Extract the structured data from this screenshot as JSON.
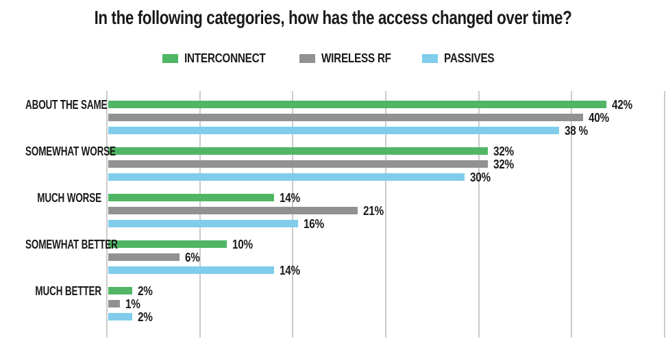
{
  "chart_data": {
    "type": "bar",
    "orientation": "horizontal",
    "title": "In the following categories, how has the access changed over time?",
    "categories": [
      "ABOUT THE SAME",
      "SOMEWHAT WORSE",
      "MUCH WORSE",
      "SOMEWHAT BETTER",
      "MUCH BETTER"
    ],
    "series": [
      {
        "name": "INTERCONNECT",
        "color": "#50b665",
        "values": [
          42,
          32,
          14,
          10,
          2
        ],
        "labels": [
          "42%",
          "32%",
          "14%",
          "10%",
          "2%"
        ]
      },
      {
        "name": "WIRELESS RF",
        "color": "#919191",
        "values": [
          40,
          32,
          21,
          6,
          1
        ],
        "labels": [
          "40%",
          "32%",
          "21%",
          "6%",
          "1%"
        ]
      },
      {
        "name": "PASSIVES",
        "color": "#7fcdeb",
        "values": [
          38,
          30,
          16,
          14,
          2
        ],
        "labels": [
          "38 %",
          "30%",
          "16%",
          "14%",
          "2%"
        ]
      }
    ],
    "xlim": [
      0,
      47
    ],
    "grid": {
      "vertical_line_count": 7,
      "color": "#cbcbcb"
    },
    "legend_position": "top",
    "text_color": "#1a1a1a",
    "background": "#ffffff"
  }
}
